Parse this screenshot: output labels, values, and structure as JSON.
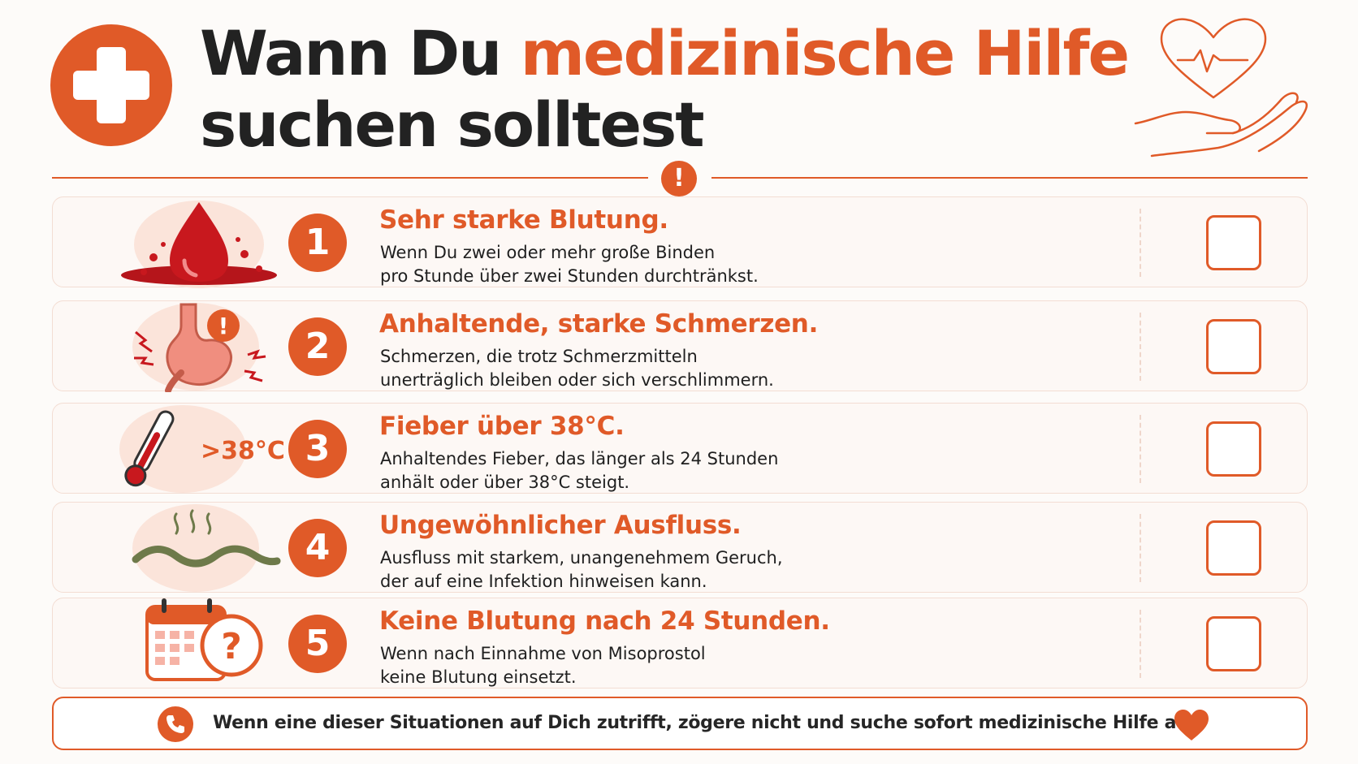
{
  "title": {
    "line1_plain": "Wann Du ",
    "line1_accent": "medizinische Hilfe",
    "line2": "suchen solltest"
  },
  "divider": {
    "symbol": "!"
  },
  "items": [
    {
      "number": "1",
      "heading": "Sehr starke Blutung.",
      "line1": "Wenn Du zwei oder mehr große Binden",
      "line2": "pro Stunde über zwei Stunden durchtränkst.",
      "icon": "blood-drop-icon"
    },
    {
      "number": "2",
      "heading": "Anhaltende, starke Schmerzen.",
      "line1": "Schmerzen, die trotz Schmerzmitteln",
      "line2": "unerträglich bleiben oder sich verschlimmern.",
      "icon": "stomach-pain-icon"
    },
    {
      "number": "3",
      "heading": "Fieber über 38°C.",
      "line1": "Anhaltendes Fieber, das länger als 24 Stunden",
      "line2": "anhält oder über 38°C steigt.",
      "icon": "thermometer-icon",
      "icon_label": ">38°C"
    },
    {
      "number": "4",
      "heading": "Ungewöhnlicher Ausfluss.",
      "line1": "Ausfluss mit starkem, unangenehmem Geruch,",
      "line2": "der auf eine Infektion hinweisen kann.",
      "icon": "discharge-wave-icon"
    },
    {
      "number": "5",
      "heading": "Keine Blutung nach 24 Stunden.",
      "line1": "Wenn nach Einnahme von Misoprostol",
      "line2": "keine Blutung einsetzt.",
      "icon": "calendar-question-icon",
      "icon_label": "?"
    }
  ],
  "footer": {
    "message": "Wenn eine dieser Situationen auf Dich zutrifft, zögere nicht und suche sofort medizinische Hilfe auf.",
    "icons": [
      "phone-icon",
      "heart-icon"
    ]
  },
  "colors": {
    "accent": "#e05a28",
    "blood": "#c8181e",
    "background": "#fdfbf9",
    "text": "#1f1f1f"
  }
}
